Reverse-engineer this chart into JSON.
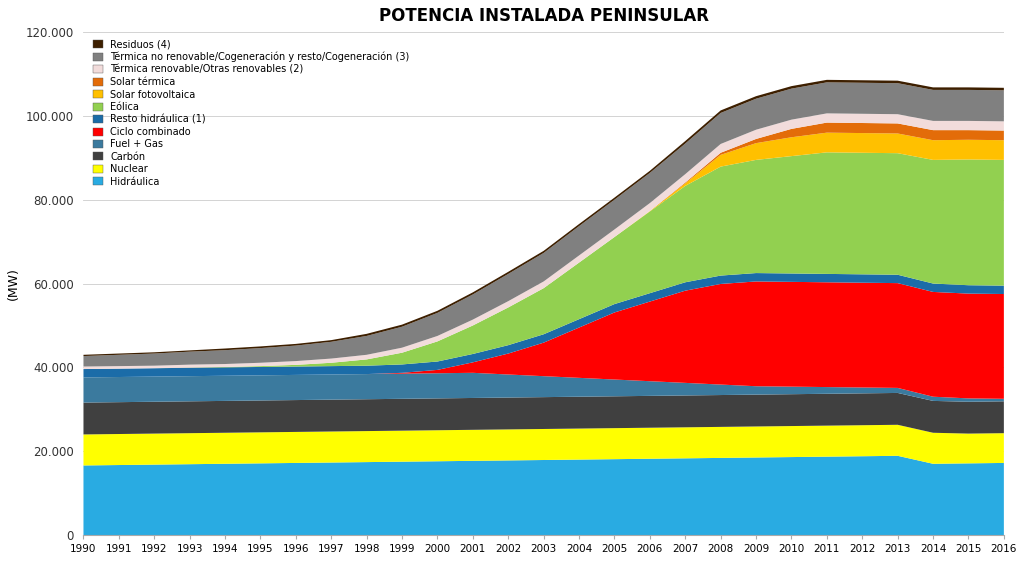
{
  "title": "POTENCIA INSTALADA PENINSULAR",
  "ylabel": "(MW)",
  "years": [
    1990,
    1991,
    1992,
    1993,
    1994,
    1995,
    1996,
    1997,
    1998,
    1999,
    2000,
    2001,
    2002,
    2003,
    2004,
    2005,
    2006,
    2007,
    2008,
    2009,
    2010,
    2011,
    2012,
    2013,
    2014,
    2015,
    2016
  ],
  "series": {
    "Hidráulica": [
      16600,
      16700,
      16800,
      16900,
      17000,
      17100,
      17200,
      17300,
      17400,
      17500,
      17600,
      17700,
      17800,
      17900,
      18000,
      18100,
      18200,
      18300,
      18400,
      18500,
      18600,
      18700,
      18800,
      18900,
      17000,
      17100,
      17200
    ],
    "Nuclear": [
      7400,
      7400,
      7400,
      7400,
      7400,
      7400,
      7400,
      7400,
      7400,
      7400,
      7400,
      7400,
      7400,
      7400,
      7400,
      7400,
      7400,
      7400,
      7400,
      7400,
      7400,
      7400,
      7400,
      7400,
      7400,
      7100,
      7100
    ],
    "Carbón": [
      7600,
      7600,
      7600,
      7600,
      7600,
      7600,
      7600,
      7600,
      7600,
      7600,
      7600,
      7600,
      7600,
      7600,
      7600,
      7600,
      7600,
      7600,
      7600,
      7600,
      7600,
      7600,
      7600,
      7600,
      7600,
      7600,
      7600
    ],
    "Fuel + Gas": [
      6000,
      6000,
      6000,
      6000,
      6000,
      6000,
      6000,
      6000,
      6000,
      6000,
      6000,
      6000,
      5500,
      5000,
      4500,
      4000,
      3500,
      3000,
      2500,
      2000,
      1800,
      1600,
      1400,
      1200,
      1000,
      800,
      600
    ],
    "Ciclo combinado": [
      0,
      0,
      0,
      0,
      0,
      0,
      0,
      0,
      0,
      200,
      800,
      2500,
      5000,
      8000,
      12000,
      16000,
      19000,
      22000,
      24000,
      25000,
      25000,
      25000,
      25000,
      25000,
      25000,
      25000,
      25000
    ],
    "Resto hidráulica (1)": [
      2000,
      2000,
      2000,
      2000,
      2000,
      2000,
      2000,
      2000,
      2000,
      2000,
      2000,
      2000,
      2000,
      2000,
      2000,
      2000,
      2000,
      2000,
      2000,
      2000,
      2000,
      2000,
      2000,
      2000,
      2000,
      2000,
      2000
    ],
    "Eólica": [
      0,
      0,
      0,
      50,
      100,
      200,
      400,
      800,
      1500,
      2800,
      4800,
      6800,
      9000,
      11000,
      13500,
      16000,
      19500,
      23000,
      26000,
      27000,
      28000,
      29000,
      29000,
      29000,
      29500,
      30000,
      30000
    ],
    "Solar fotovoltaica": [
      0,
      0,
      0,
      0,
      0,
      0,
      0,
      0,
      0,
      0,
      0,
      0,
      0,
      0,
      0,
      0,
      100,
      600,
      2800,
      4000,
      4500,
      4700,
      4700,
      4700,
      4700,
      4700,
      4700
    ],
    "Solar térmica": [
      0,
      0,
      0,
      0,
      0,
      0,
      0,
      0,
      0,
      0,
      0,
      0,
      0,
      0,
      0,
      0,
      0,
      200,
      500,
      1000,
      2000,
      2400,
      2400,
      2400,
      2400,
      2300,
      2300
    ],
    "Térmica renovable/Otras renovables (2)": [
      600,
      600,
      600,
      700,
      700,
      800,
      900,
      1000,
      1100,
      1200,
      1300,
      1400,
      1500,
      1600,
      1700,
      1800,
      1900,
      2000,
      2100,
      2200,
      2200,
      2200,
      2200,
      2200,
      2200,
      2200,
      2200
    ],
    "Térmica no renovable/Cogeneración y resto/Cogeneración (3)": [
      2500,
      2700,
      2900,
      3100,
      3300,
      3500,
      3700,
      4000,
      4500,
      5000,
      5500,
      6000,
      6500,
      6800,
      7000,
      7100,
      7200,
      7300,
      7400,
      7400,
      7400,
      7400,
      7400,
      7400,
      7400,
      7400,
      7400
    ],
    "Residuos (4)": [
      300,
      300,
      300,
      300,
      400,
      400,
      400,
      400,
      500,
      500,
      500,
      500,
      500,
      500,
      500,
      500,
      500,
      600,
      600,
      600,
      600,
      600,
      600,
      600,
      600,
      600,
      600
    ]
  },
  "colors": {
    "Hidráulica": "#29ABE2",
    "Nuclear": "#FFFF00",
    "Carbón": "#404040",
    "Fuel + Gas": "#3B7A9E",
    "Ciclo combinado": "#FF0000",
    "Resto hidráulica (1)": "#1B6CA8",
    "Eólica": "#92D050",
    "Solar fotovoltaica": "#FFC000",
    "Solar térmica": "#E36C09",
    "Térmica renovable/Otras renovables (2)": "#F2DCDB",
    "Térmica no renovable/Cogeneración y resto/Cogeneración (3)": "#808080",
    "Residuos (4)": "#3D1F00"
  },
  "legend_order": [
    "Residuos (4)",
    "Térmica no renovable/Cogeneración y resto/Cogeneración (3)",
    "Térmica renovable/Otras renovables (2)",
    "Solar térmica",
    "Solar fotovoltaica",
    "Eólica",
    "Resto hidráulica (1)",
    "Ciclo combinado",
    "Fuel + Gas",
    "Carbón",
    "Nuclear",
    "Hidráulica"
  ],
  "stack_order": [
    "Hidráulica",
    "Nuclear",
    "Carbón",
    "Fuel + Gas",
    "Ciclo combinado",
    "Resto hidráulica (1)",
    "Eólica",
    "Solar fotovoltaica",
    "Solar térmica",
    "Térmica renovable/Otras renovables (2)",
    "Térmica no renovable/Cogeneración y resto/Cogeneración (3)",
    "Residuos (4)"
  ],
  "ylim": [
    0,
    120000
  ],
  "yticks": [
    0,
    20000,
    40000,
    60000,
    80000,
    100000,
    120000
  ],
  "ytick_labels": [
    "0",
    "20.000",
    "40.000",
    "60.000",
    "80.000",
    "100.000",
    "120.000"
  ],
  "background_color": "#FFFFFF"
}
